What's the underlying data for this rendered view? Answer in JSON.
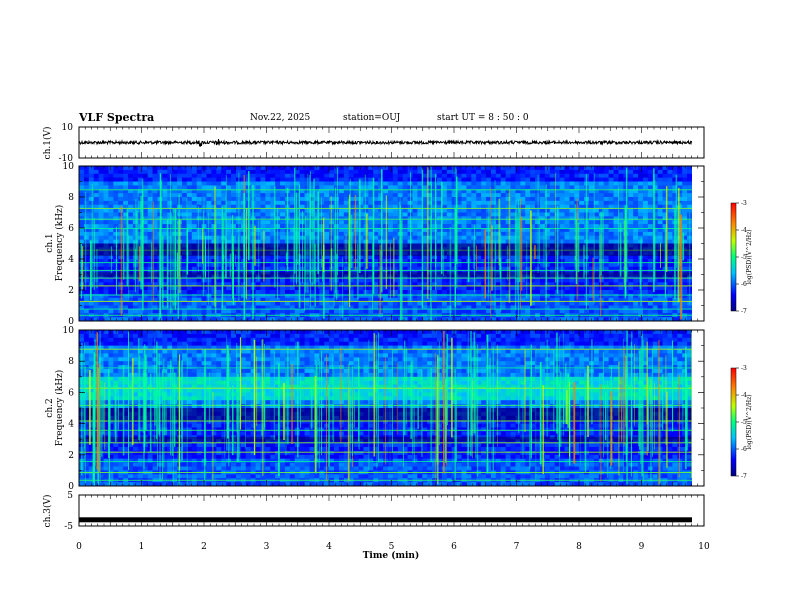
{
  "header": {
    "title": "VLF Spectra",
    "date": "Nov.22, 2025",
    "station": "station=OUJ",
    "start_ut": "start  UT =  8 : 50 : 0"
  },
  "chart_data": [
    {
      "type": "line",
      "id": "ch1-waveform",
      "ylabel": "ch.1(V)",
      "ylim": [
        -10,
        10
      ],
      "yticks": [
        "10",
        "-10"
      ],
      "xlim": [
        0,
        10
      ],
      "baseline": 0
    },
    {
      "type": "heatmap",
      "id": "ch1-spectrogram",
      "ylabel_top": "ch.1",
      "ylabel": "Frequency (kHz)",
      "ylim": [
        0,
        10
      ],
      "yticks": [
        "0",
        "2",
        "4",
        "6",
        "8",
        "10"
      ],
      "xlim": [
        0,
        10
      ],
      "colorbar": {
        "label": "log(PSD)(V^2/Hz)",
        "range": [
          -7,
          -3
        ],
        "ticks": [
          "-3",
          "-4",
          "-5",
          "-6",
          "-7"
        ]
      }
    },
    {
      "type": "heatmap",
      "id": "ch2-spectrogram",
      "ylabel_top": "ch.2",
      "ylabel": "Frequency (kHz)",
      "ylim": [
        0,
        10
      ],
      "yticks": [
        "0",
        "2",
        "4",
        "6",
        "8",
        "10"
      ],
      "xlim": [
        0,
        10
      ],
      "colorbar": {
        "label": "log(PSD)(V^2/Hz)",
        "range": [
          -7,
          -3
        ],
        "ticks": [
          "-3",
          "-4",
          "-5",
          "-6",
          "-7"
        ]
      }
    },
    {
      "type": "line",
      "id": "ch3-waveform",
      "ylabel": "ch.3(V)",
      "ylim": [
        -5,
        5
      ],
      "yticks": [
        "5",
        "-5"
      ],
      "xlim": [
        0,
        10
      ],
      "baseline": -3
    }
  ],
  "xaxis": {
    "label": "Time  (min)",
    "ticks": [
      "0",
      "1",
      "2",
      "3",
      "4",
      "5",
      "6",
      "7",
      "8",
      "9",
      "10"
    ]
  }
}
